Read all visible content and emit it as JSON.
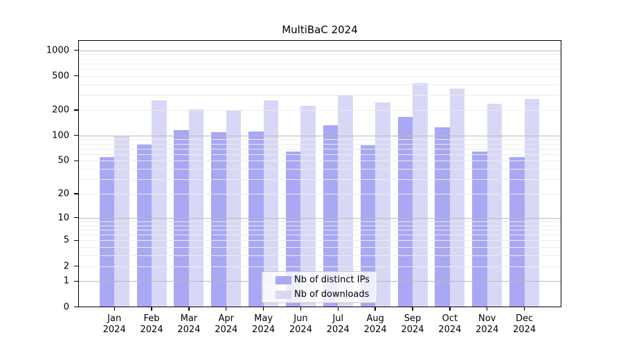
{
  "title": "MultiBaC 2024",
  "chart_data": {
    "type": "bar",
    "title": "MultiBaC 2024",
    "categories": [
      "Jan",
      "Feb",
      "Mar",
      "Apr",
      "May",
      "Jun",
      "Jul",
      "Aug",
      "Sep",
      "Oct",
      "Nov",
      "Dec"
    ],
    "x_tick_second_line": "2024",
    "series": [
      {
        "name": "Nb of distinct IPs",
        "color": "#a8a8f4",
        "values": [
          55,
          78,
          115,
          110,
          111,
          64,
          132,
          76,
          165,
          124,
          64,
          55
        ]
      },
      {
        "name": "Nb of downloads",
        "color": "#d8d8f6",
        "values": [
          100,
          258,
          205,
          196,
          257,
          222,
          301,
          244,
          415,
          357,
          236,
          268
        ]
      }
    ],
    "xlabel": "",
    "ylabel": "",
    "y_scale": "log1p",
    "ylim": [
      0,
      1330
    ],
    "y_ticks": [
      0,
      1,
      2,
      5,
      10,
      20,
      50,
      100,
      200,
      500,
      1000
    ],
    "grid": "on",
    "grid_lines_light": [
      2,
      3,
      4,
      5,
      6,
      7,
      8,
      9,
      20,
      30,
      40,
      50,
      60,
      70,
      80,
      90,
      200,
      300,
      400,
      500,
      600,
      700,
      800,
      900
    ],
    "grid_lines_dark": [
      1,
      10,
      100,
      1000
    ],
    "legend_position": "lower center",
    "colors": {
      "grid_light": "#ececec",
      "grid_dark": "#b9b9b9",
      "axis": "#000000",
      "background": "#ffffff"
    }
  }
}
